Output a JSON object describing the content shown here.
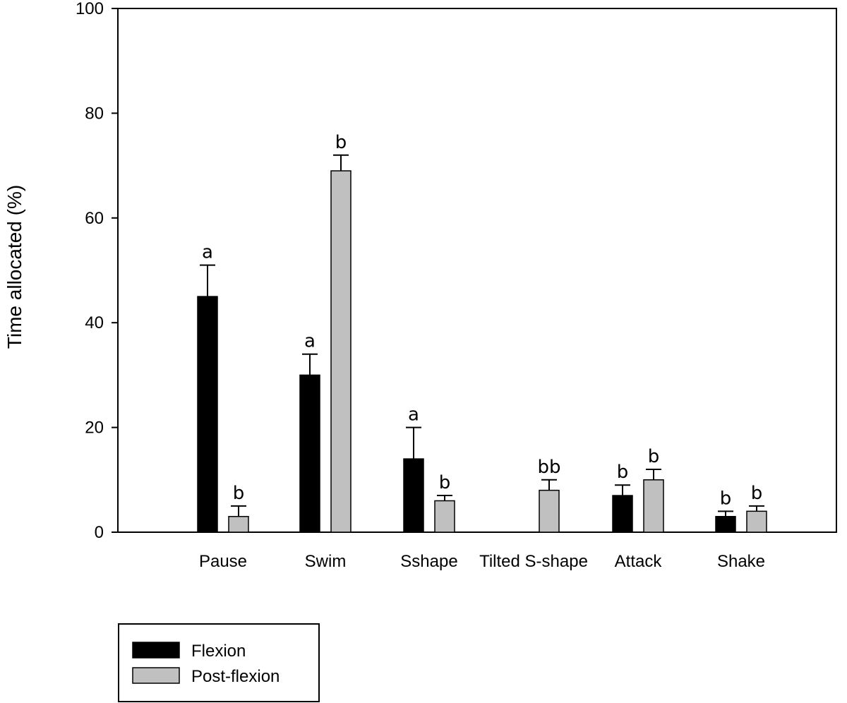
{
  "chart_data": {
    "type": "bar",
    "title": "",
    "xlabel": "",
    "ylabel": "Time allocated (%)",
    "ylim": [
      0,
      100
    ],
    "yticks": [
      0,
      20,
      40,
      60,
      80,
      100
    ],
    "grid": false,
    "legend_position": "bottom-left",
    "categories": [
      "Pause",
      "Swim",
      "Sshape",
      "Tilted S-shape",
      "Attack",
      "Shake"
    ],
    "series": [
      {
        "name": "Flexion",
        "color": "#000000",
        "values": [
          45,
          30,
          14,
          0,
          7,
          3
        ],
        "errors": [
          6,
          4,
          6,
          0,
          2,
          1
        ],
        "labels": [
          "a",
          "a",
          "a",
          "",
          "b",
          "b"
        ]
      },
      {
        "name": "Post-flexion",
        "color": "#c0c0c0",
        "values": [
          3,
          69,
          6,
          8,
          10,
          4
        ],
        "errors": [
          2,
          3,
          1,
          2,
          2,
          1
        ],
        "labels": [
          "b",
          "b",
          "b",
          "bb",
          "b",
          "b"
        ]
      }
    ]
  }
}
